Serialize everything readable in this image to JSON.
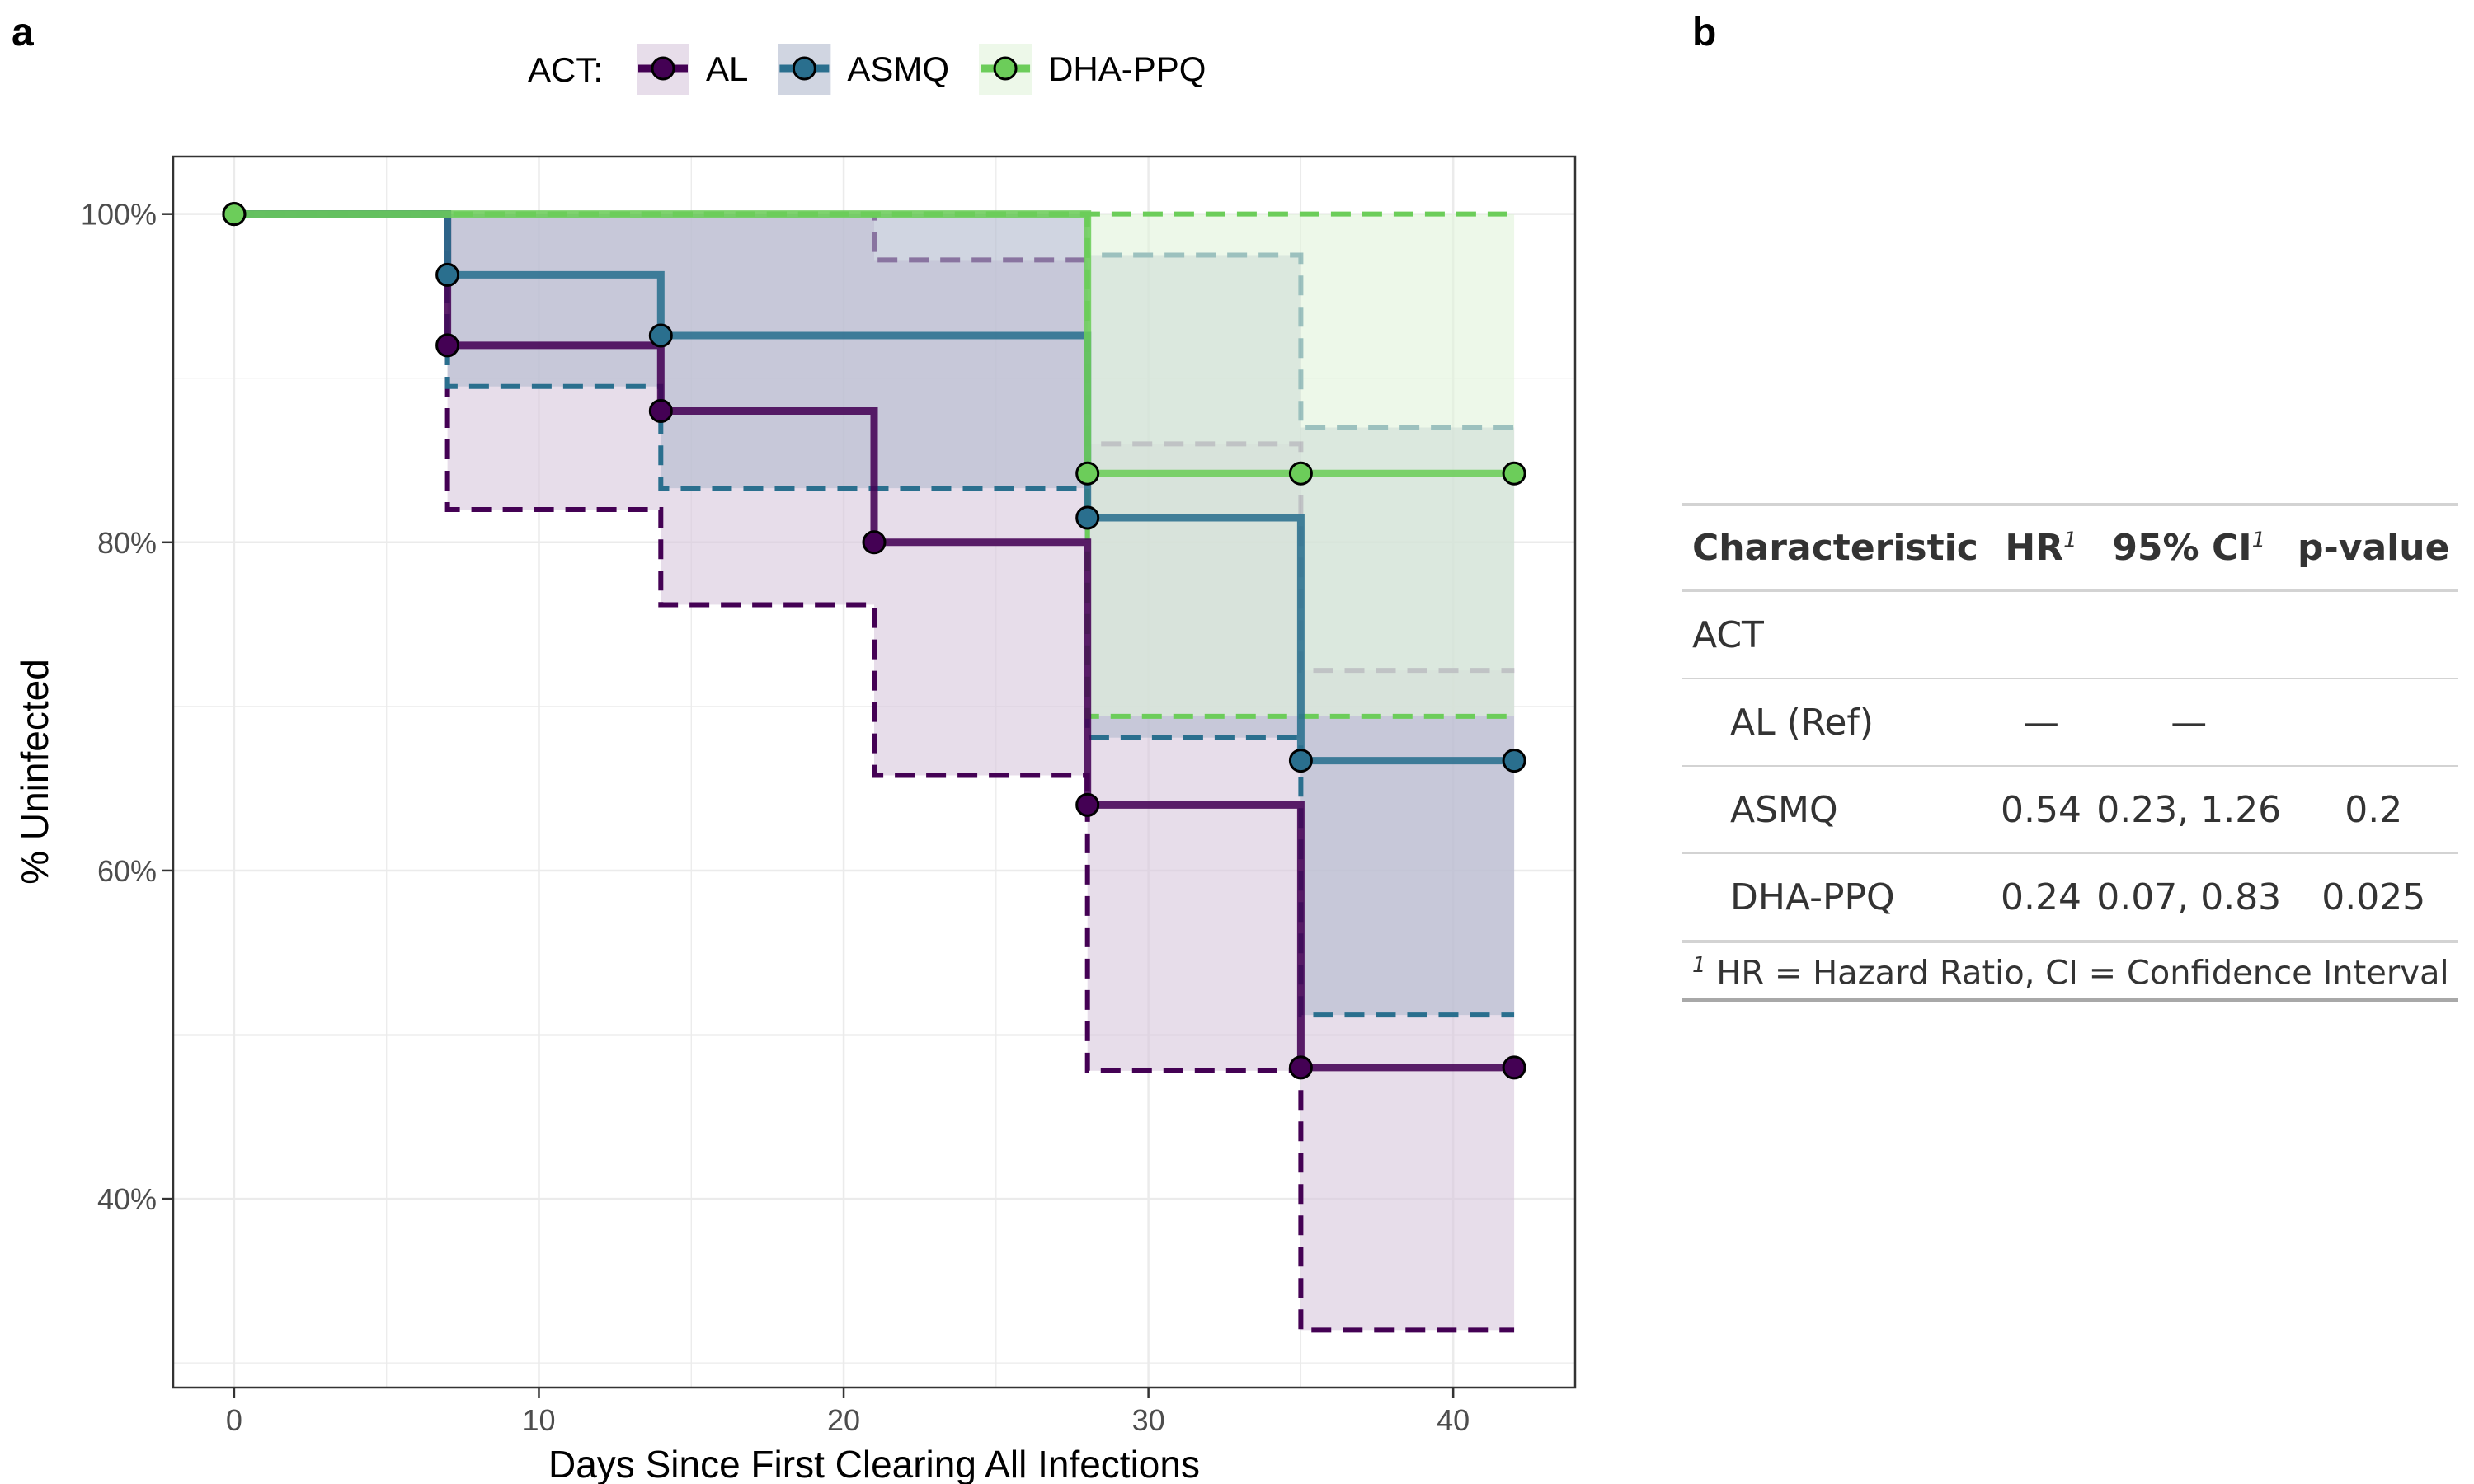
{
  "panels": {
    "a": "a",
    "b": "b"
  },
  "chart_data": {
    "type": "line",
    "subtype": "kaplan-meier step plot with confidence bands",
    "xlabel": "Days Since First Clearing All Infections",
    "ylabel": "% Uninfected",
    "xlim": [
      -2,
      44
    ],
    "ylim": [
      28.5,
      103.5
    ],
    "x_ticks": [
      0,
      10,
      20,
      30,
      40
    ],
    "y_ticks": [
      40,
      60,
      80,
      100
    ],
    "y_tick_labels": [
      "40%",
      "60%",
      "80%",
      "100%"
    ],
    "grid": true,
    "legend": {
      "title": "ACT:",
      "position": "top"
    },
    "series": [
      {
        "name": "AL",
        "color": "#440154",
        "fill": "#d9c8dd",
        "points": [
          {
            "x": 0,
            "y": 100
          },
          {
            "x": 7,
            "y": 92
          },
          {
            "x": 14,
            "y": 88
          },
          {
            "x": 21,
            "y": 80
          },
          {
            "x": 28,
            "y": 64
          },
          {
            "x": 35,
            "y": 48
          },
          {
            "x": 42,
            "y": 48
          }
        ],
        "lower": [
          {
            "x": 7,
            "y": 82
          },
          {
            "x": 14,
            "y": 76.2
          },
          {
            "x": 21,
            "y": 65.8
          },
          {
            "x": 28,
            "y": 47.8
          },
          {
            "x": 35,
            "y": 32
          }
        ],
        "upper": [
          {
            "x": 21,
            "y": 97.2
          },
          {
            "x": 28,
            "y": 86
          },
          {
            "x": 35,
            "y": 72.2
          }
        ]
      },
      {
        "name": "ASMQ",
        "color": "#2a6f8e",
        "fill": "#b3bcce",
        "points": [
          {
            "x": 0,
            "y": 100
          },
          {
            "x": 7,
            "y": 96.3
          },
          {
            "x": 14,
            "y": 92.6
          },
          {
            "x": 28,
            "y": 81.5
          },
          {
            "x": 35,
            "y": 66.7
          },
          {
            "x": 42,
            "y": 66.7
          }
        ],
        "lower": [
          {
            "x": 7,
            "y": 89.5
          },
          {
            "x": 14,
            "y": 83.3
          },
          {
            "x": 28,
            "y": 68.1
          },
          {
            "x": 35,
            "y": 51.2
          }
        ],
        "upper": [
          {
            "x": 28,
            "y": 97.5
          },
          {
            "x": 35,
            "y": 87
          }
        ]
      },
      {
        "name": "DHA-PPQ",
        "color": "#6ccd5a",
        "fill": "#e2f4dc",
        "points": [
          {
            "x": 0,
            "y": 100
          },
          {
            "x": 28,
            "y": 84.2
          },
          {
            "x": 35,
            "y": 84.2
          },
          {
            "x": 42,
            "y": 84.2
          }
        ],
        "lower": [
          {
            "x": 28,
            "y": 69.4
          }
        ],
        "upper": [
          {
            "x": 28,
            "y": 100
          }
        ]
      }
    ]
  },
  "table": {
    "headers": {
      "characteristic": "Characteristic",
      "hr": "HR",
      "ci": "95% CI",
      "p": "p-value",
      "sup": "1"
    },
    "group": "ACT",
    "rows": [
      {
        "label": "AL (Ref)",
        "hr": "—",
        "ci": "—",
        "p": ""
      },
      {
        "label": "ASMQ",
        "hr": "0.54",
        "ci": "0.23, 1.26",
        "p": "0.2"
      },
      {
        "label": "DHA-PPQ",
        "hr": "0.24",
        "ci": "0.07, 0.83",
        "p": "0.025"
      }
    ],
    "footnote_mark": "1",
    "footnote": "HR = Hazard Ratio, CI = Confidence Interval"
  }
}
